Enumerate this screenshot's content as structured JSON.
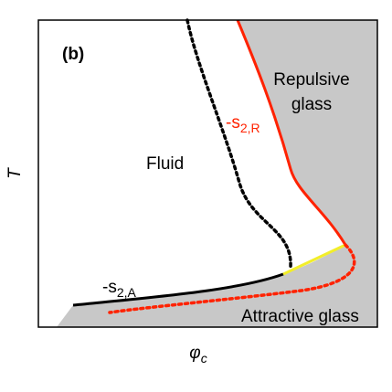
{
  "panel_label": "(b)",
  "regions": {
    "fluid": "Fluid",
    "repulsive_line1": "Repulsive",
    "repulsive_line2": "glass",
    "attractive": "Attractive glass"
  },
  "axes": {
    "x_symbol": "φ",
    "x_subscript": "c",
    "y_symbol": "T"
  },
  "curve_labels": {
    "s2R_prefix": "-s",
    "s2R_subscript": "2,R",
    "s2A_prefix": "-s",
    "s2A_subscript": "2,A"
  },
  "colors": {
    "glass_fill": "#c8c8c8",
    "repulsive_line": "#ff2200",
    "attractive_line": "#000000",
    "dotted_black": "#000000",
    "dotted_red": "#ff2200",
    "yellow_segment": "#f2ee2a",
    "repulsive_label": "#ff2200"
  }
}
